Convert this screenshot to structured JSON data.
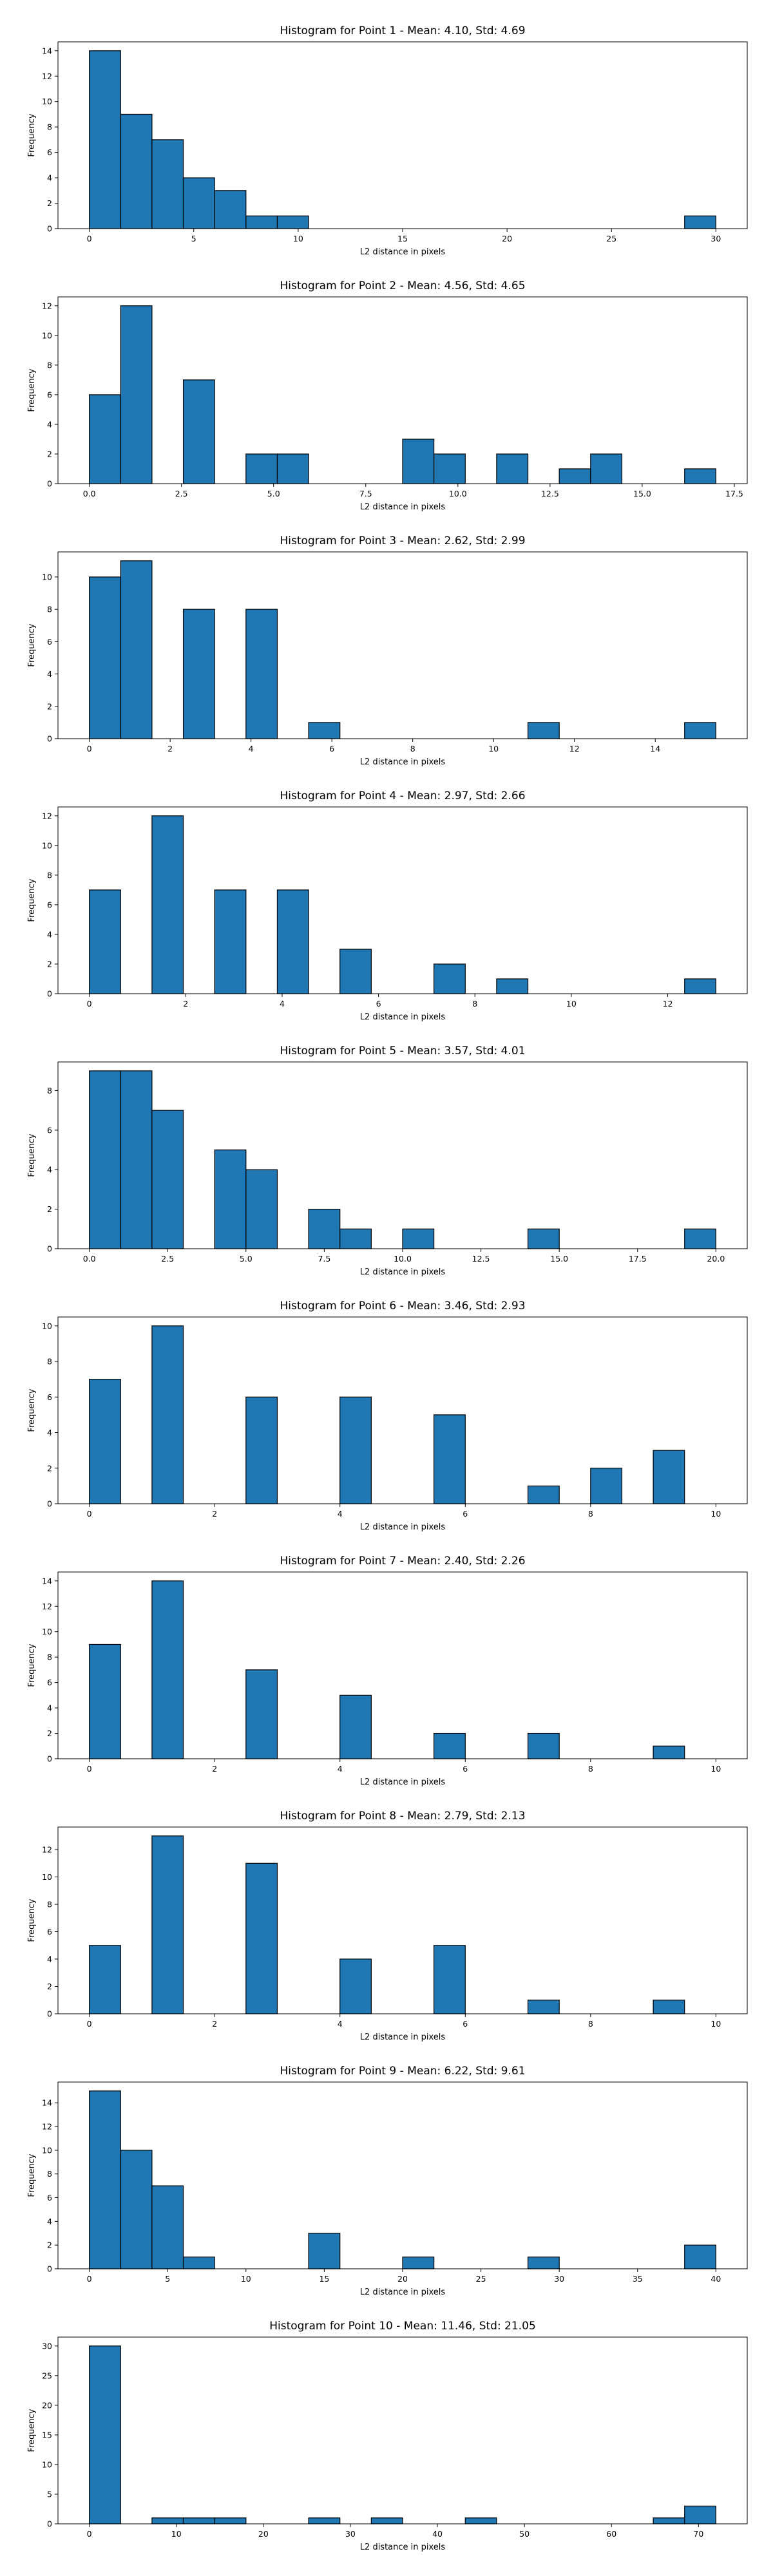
{
  "chart_data": [
    {
      "type": "bar",
      "title": "Histogram for Point 1 - Mean: 4.10, Std: 4.69",
      "xlabel": "L2 distance in pixels",
      "ylabel": "Frequency",
      "bin_start": 0,
      "bin_width": 1.5,
      "values": [
        14,
        9,
        7,
        4,
        3,
        1,
        1,
        0,
        0,
        0,
        0,
        0,
        0,
        0,
        0,
        0,
        0,
        0,
        0,
        1
      ],
      "xlim": [
        -1.5,
        31.5
      ],
      "ylim": [
        0,
        14.7
      ],
      "xticks": [
        0,
        5,
        10,
        15,
        20,
        25,
        30
      ],
      "xtick_labels": [
        "0",
        "5",
        "10",
        "15",
        "20",
        "25",
        "30"
      ],
      "yticks": [
        0,
        2,
        4,
        6,
        8,
        10,
        12,
        14
      ],
      "ytick_labels": [
        "0",
        "2",
        "4",
        "6",
        "8",
        "10",
        "12",
        "14"
      ]
    },
    {
      "type": "bar",
      "title": "Histogram for Point 2 - Mean: 4.56, Std: 4.65",
      "xlabel": "L2 distance in pixels",
      "ylabel": "Frequency",
      "bin_start": 0,
      "bin_width": 0.85,
      "values": [
        6,
        12,
        0,
        7,
        0,
        2,
        2,
        0,
        0,
        0,
        3,
        2,
        0,
        2,
        0,
        1,
        2,
        0,
        0,
        1
      ],
      "xlim": [
        -0.85,
        17.85
      ],
      "ylim": [
        0,
        12.6
      ],
      "xticks": [
        0,
        2.5,
        5,
        7.5,
        10,
        12.5,
        15,
        17.5
      ],
      "xtick_labels": [
        "0.0",
        "2.5",
        "5.0",
        "7.5",
        "10.0",
        "12.5",
        "15.0",
        "17.5"
      ],
      "yticks": [
        0,
        2,
        4,
        6,
        8,
        10,
        12
      ],
      "ytick_labels": [
        "0",
        "2",
        "4",
        "6",
        "8",
        "10",
        "12"
      ]
    },
    {
      "type": "bar",
      "title": "Histogram for Point 3 - Mean: 2.62, Std: 2.99",
      "xlabel": "L2 distance in pixels",
      "ylabel": "Frequency",
      "bin_start": 0,
      "bin_width": 0.775,
      "values": [
        10,
        11,
        0,
        8,
        0,
        8,
        0,
        1,
        0,
        0,
        0,
        0,
        0,
        0,
        1,
        0,
        0,
        0,
        0,
        1
      ],
      "xlim": [
        -0.775,
        16.275
      ],
      "ylim": [
        0,
        11.55
      ],
      "xticks": [
        0,
        2,
        4,
        6,
        8,
        10,
        12,
        14
      ],
      "xtick_labels": [
        "0",
        "2",
        "4",
        "6",
        "8",
        "10",
        "12",
        "14"
      ],
      "yticks": [
        0,
        2,
        4,
        6,
        8,
        10
      ],
      "ytick_labels": [
        "0",
        "2",
        "4",
        "6",
        "8",
        "10"
      ]
    },
    {
      "type": "bar",
      "title": "Histogram for Point 4 - Mean: 2.97, Std: 2.66",
      "xlabel": "L2 distance in pixels",
      "ylabel": "Frequency",
      "bin_start": 0,
      "bin_width": 0.65,
      "values": [
        7,
        0,
        12,
        0,
        7,
        0,
        7,
        0,
        3,
        0,
        0,
        2,
        0,
        1,
        0,
        0,
        0,
        0,
        0,
        1
      ],
      "xlim": [
        -0.65,
        13.65
      ],
      "ylim": [
        0,
        12.6
      ],
      "xticks": [
        0,
        2,
        4,
        6,
        8,
        10,
        12
      ],
      "xtick_labels": [
        "0",
        "2",
        "4",
        "6",
        "8",
        "10",
        "12"
      ],
      "yticks": [
        0,
        2,
        4,
        6,
        8,
        10,
        12
      ],
      "ytick_labels": [
        "0",
        "2",
        "4",
        "6",
        "8",
        "10",
        "12"
      ]
    },
    {
      "type": "bar",
      "title": "Histogram for Point 5 - Mean: 3.57, Std: 4.01",
      "xlabel": "L2 distance in pixels",
      "ylabel": "Frequency",
      "bin_start": 0,
      "bin_width": 1.0,
      "values": [
        9,
        9,
        7,
        0,
        5,
        4,
        0,
        2,
        1,
        0,
        1,
        0,
        0,
        0,
        1,
        0,
        0,
        0,
        0,
        1
      ],
      "xlim": [
        -1.0,
        21.0
      ],
      "ylim": [
        0,
        9.45
      ],
      "xticks": [
        0,
        2.5,
        5,
        7.5,
        10,
        12.5,
        15,
        17.5,
        20
      ],
      "xtick_labels": [
        "0.0",
        "2.5",
        "5.0",
        "7.5",
        "10.0",
        "12.5",
        "15.0",
        "17.5",
        "20.0"
      ],
      "yticks": [
        0,
        2,
        4,
        6,
        8
      ],
      "ytick_labels": [
        "0",
        "2",
        "4",
        "6",
        "8"
      ]
    },
    {
      "type": "bar",
      "title": "Histogram for Point 6 - Mean: 3.46, Std: 2.93",
      "xlabel": "L2 distance in pixels",
      "ylabel": "Frequency",
      "bin_start": 0,
      "bin_width": 0.5,
      "values": [
        7,
        0,
        10,
        0,
        0,
        6,
        0,
        0,
        6,
        0,
        0,
        5,
        0,
        0,
        1,
        0,
        2,
        0,
        3,
        0
      ],
      "xlim": [
        -0.5,
        10.5
      ],
      "ylim": [
        0,
        10.5
      ],
      "xticks": [
        0,
        2,
        4,
        6,
        8,
        10
      ],
      "xtick_labels": [
        "0",
        "2",
        "4",
        "6",
        "8",
        "10"
      ],
      "yticks": [
        0,
        2,
        4,
        6,
        8,
        10
      ],
      "ytick_labels": [
        "0",
        "2",
        "4",
        "6",
        "8",
        "10"
      ]
    },
    {
      "type": "bar",
      "title": "Histogram for Point 7 - Mean: 2.40, Std: 2.26",
      "xlabel": "L2 distance in pixels",
      "ylabel": "Frequency",
      "bin_start": 0,
      "bin_width": 0.5,
      "values": [
        9,
        0,
        14,
        0,
        0,
        7,
        0,
        0,
        5,
        0,
        0,
        2,
        0,
        0,
        2,
        0,
        0,
        0,
        1,
        0
      ],
      "xlim": [
        -0.5,
        10.5
      ],
      "ylim": [
        0,
        14.7
      ],
      "xticks": [
        0,
        2,
        4,
        6,
        8,
        10
      ],
      "xtick_labels": [
        "0",
        "2",
        "4",
        "6",
        "8",
        "10"
      ],
      "yticks": [
        0,
        2,
        4,
        6,
        8,
        10,
        12,
        14
      ],
      "ytick_labels": [
        "0",
        "2",
        "4",
        "6",
        "8",
        "10",
        "12",
        "14"
      ]
    },
    {
      "type": "bar",
      "title": "Histogram for Point 8 - Mean: 2.79, Std: 2.13",
      "xlabel": "L2 distance in pixels",
      "ylabel": "Frequency",
      "bin_start": 0,
      "bin_width": 0.5,
      "values": [
        5,
        0,
        13,
        0,
        0,
        11,
        0,
        0,
        4,
        0,
        0,
        5,
        0,
        0,
        1,
        0,
        0,
        0,
        1,
        0
      ],
      "xlim": [
        -0.5,
        10.5
      ],
      "ylim": [
        0,
        13.65
      ],
      "xticks": [
        0,
        2,
        4,
        6,
        8,
        10
      ],
      "xtick_labels": [
        "0",
        "2",
        "4",
        "6",
        "8",
        "10"
      ],
      "yticks": [
        0,
        2,
        4,
        6,
        8,
        10,
        12
      ],
      "ytick_labels": [
        "0",
        "2",
        "4",
        "6",
        "8",
        "10",
        "12"
      ]
    },
    {
      "type": "bar",
      "title": "Histogram for Point 9 - Mean: 6.22, Std: 9.61",
      "xlabel": "L2 distance in pixels",
      "ylabel": "Frequency",
      "bin_start": 0,
      "bin_width": 2.0,
      "values": [
        15,
        10,
        7,
        1,
        0,
        0,
        0,
        3,
        0,
        0,
        1,
        0,
        0,
        0,
        1,
        0,
        0,
        0,
        0,
        2
      ],
      "xlim": [
        -2.0,
        42.0
      ],
      "ylim": [
        0,
        15.75
      ],
      "xticks": [
        0,
        5,
        10,
        15,
        20,
        25,
        30,
        35,
        40
      ],
      "xtick_labels": [
        "0",
        "5",
        "10",
        "15",
        "20",
        "25",
        "30",
        "35",
        "40"
      ],
      "yticks": [
        0,
        2,
        4,
        6,
        8,
        10,
        12,
        14
      ],
      "ytick_labels": [
        "0",
        "2",
        "4",
        "6",
        "8",
        "10",
        "12",
        "14"
      ]
    },
    {
      "type": "bar",
      "title": "Histogram for Point 10 - Mean: 11.46, Std: 21.05",
      "xlabel": "L2 distance in pixels",
      "ylabel": "Frequency",
      "bin_start": 0,
      "bin_width": 3.6,
      "values": [
        30,
        0,
        1,
        1,
        1,
        0,
        0,
        1,
        0,
        1,
        0,
        0,
        1,
        0,
        0,
        0,
        0,
        0,
        1,
        3
      ],
      "xlim": [
        -3.6,
        75.6
      ],
      "ylim": [
        0,
        31.5
      ],
      "xticks": [
        0,
        10,
        20,
        30,
        40,
        50,
        60,
        70
      ],
      "xtick_labels": [
        "0",
        "10",
        "20",
        "30",
        "40",
        "50",
        "60",
        "70"
      ],
      "yticks": [
        0,
        5,
        10,
        15,
        20,
        25,
        30
      ],
      "ytick_labels": [
        "0",
        "5",
        "10",
        "15",
        "20",
        "25",
        "30"
      ]
    }
  ]
}
